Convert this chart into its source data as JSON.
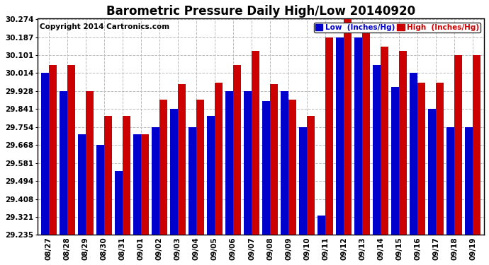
{
  "title": "Barometric Pressure Daily High/Low 20140920",
  "copyright": "Copyright 2014 Cartronics.com",
  "legend_low": "Low  (Inches/Hg)",
  "legend_high": "High  (Inches/Hg)",
  "dates": [
    "08/27",
    "08/28",
    "08/29",
    "08/30",
    "08/31",
    "09/01",
    "09/02",
    "09/03",
    "09/04",
    "09/05",
    "09/06",
    "09/07",
    "09/08",
    "09/09",
    "09/10",
    "09/11",
    "09/12",
    "09/13",
    "09/14",
    "09/15",
    "09/16",
    "09/17",
    "09/18",
    "09/19"
  ],
  "low_values": [
    30.014,
    29.928,
    29.721,
    29.668,
    29.541,
    29.721,
    29.754,
    29.841,
    29.754,
    29.808,
    29.928,
    29.928,
    29.881,
    29.928,
    29.754,
    29.328,
    30.187,
    30.187,
    30.054,
    29.948,
    30.014,
    29.841,
    29.754,
    29.754
  ],
  "high_values": [
    30.054,
    30.054,
    29.928,
    29.808,
    29.808,
    29.721,
    29.888,
    29.961,
    29.888,
    29.968,
    30.054,
    30.121,
    29.961,
    29.888,
    29.808,
    30.187,
    30.274,
    30.254,
    30.141,
    30.121,
    29.968,
    29.968,
    30.101,
    30.101
  ],
  "ylim": [
    29.235,
    30.274
  ],
  "yticks": [
    29.235,
    29.321,
    29.408,
    29.494,
    29.581,
    29.668,
    29.754,
    29.841,
    29.928,
    30.014,
    30.101,
    30.187,
    30.274
  ],
  "bar_color_low": "#0000cc",
  "bar_color_high": "#cc0000",
  "background_color": "#ffffff",
  "grid_color": "#bbbbbb",
  "title_fontsize": 12,
  "tick_fontsize": 7.5,
  "legend_fontsize": 7.5,
  "copyright_fontsize": 7.5
}
